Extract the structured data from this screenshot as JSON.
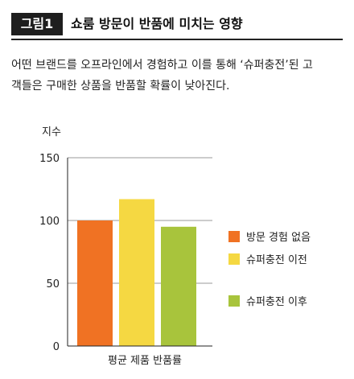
{
  "figure": {
    "label": "그림1",
    "title": "쇼룸 방문이 반품에 미치는 영향"
  },
  "description": {
    "line1": "어떤 브랜드를 오프라인에서 경험하고 이를 통해 ‘슈퍼충전’된 고",
    "line2": "객들은 구매한 상품을 반품할 확률이 낮아진다."
  },
  "chart_data": {
    "type": "bar",
    "ylabel": "지수",
    "xlabel": "평균 제품 반품률",
    "categories": [
      "평균 제품 반품률"
    ],
    "ylim": [
      0,
      150
    ],
    "yticks": [
      0,
      50,
      100,
      150
    ],
    "grid": true,
    "legend_position": "right",
    "series": [
      {
        "name": "방문 경험 없음",
        "values": [
          100
        ],
        "color": "#f07223"
      },
      {
        "name": "슈퍼충전 이전",
        "values": [
          117
        ],
        "color": "#f5d842"
      },
      {
        "name": "슈퍼충전 이후",
        "values": [
          95
        ],
        "color": "#a8c43c"
      }
    ]
  }
}
